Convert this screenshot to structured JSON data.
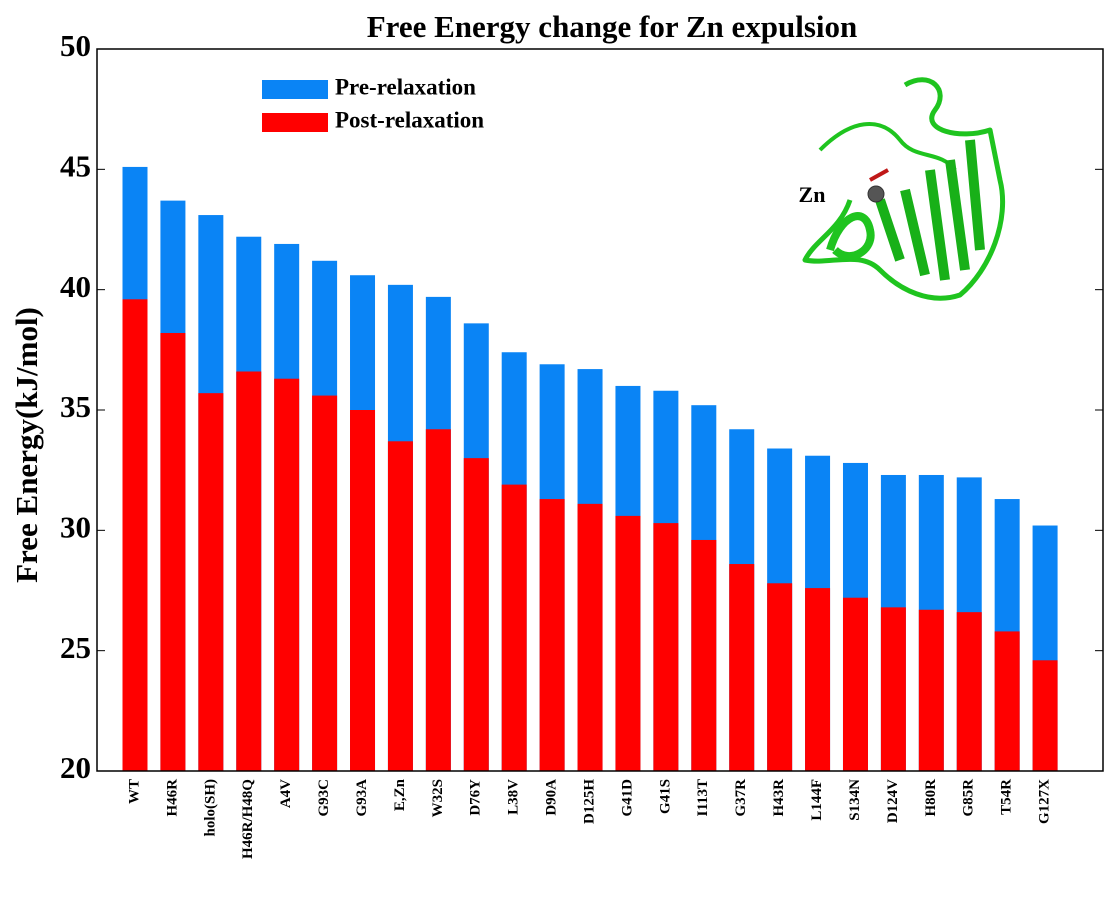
{
  "chart_data": {
    "type": "bar",
    "title": "Free Energy change for Zn expulsion",
    "y_label": "Free Energy(kJ/mol)",
    "annotation": "Zn",
    "categories": [
      "WT",
      "H46R",
      "holo(SH)",
      "H46R/H48Q",
      "A4V",
      "G93C",
      "G93A",
      "E,Zn",
      "W32S",
      "D76Y",
      "L38V",
      "D90A",
      "D125H",
      "G41D",
      "G41S",
      "I113T",
      "G37R",
      "H43R",
      "L144F",
      "S134N",
      "D124V",
      "H80R",
      "G85R",
      "T54R",
      "G127X"
    ],
    "series": [
      {
        "name": "Pre-relaxation",
        "color": "#0a84f5",
        "values": [
          45.1,
          43.7,
          43.1,
          42.2,
          41.9,
          41.2,
          40.6,
          40.2,
          39.7,
          38.6,
          37.4,
          36.9,
          36.7,
          36.0,
          35.8,
          35.2,
          34.2,
          33.4,
          33.1,
          32.8,
          32.3,
          32.3,
          32.2,
          31.3,
          30.2
        ]
      },
      {
        "name": "Post-relaxation",
        "color": "#ff0000",
        "values": [
          39.6,
          38.2,
          35.7,
          36.6,
          36.3,
          35.6,
          35.0,
          33.7,
          34.2,
          33.0,
          31.9,
          31.3,
          31.1,
          30.6,
          30.3,
          29.6,
          28.6,
          27.8,
          27.6,
          27.2,
          26.8,
          26.7,
          26.6,
          25.8,
          24.6
        ]
      }
    ],
    "ylim": [
      20,
      50
    ],
    "yticks": [
      20,
      25,
      30,
      35,
      40,
      45,
      50
    ]
  }
}
